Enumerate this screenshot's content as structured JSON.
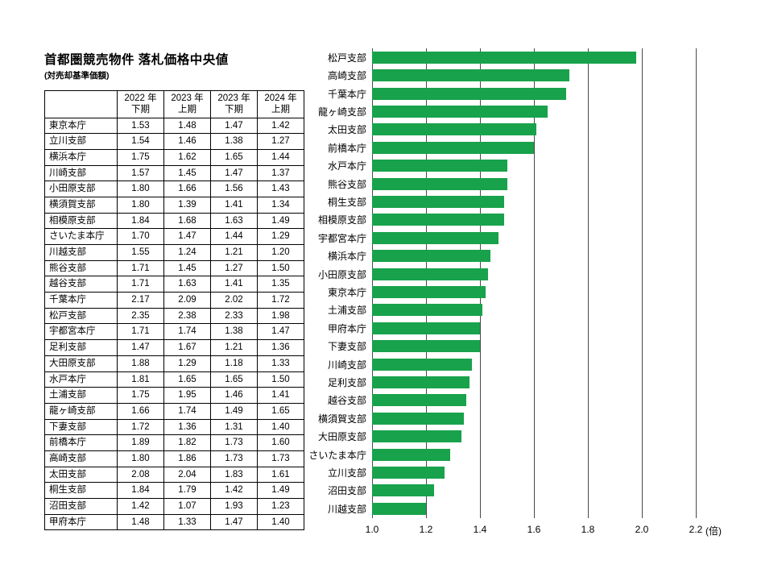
{
  "title": "首都圏競売物件 落札価格中央値",
  "subtitle": "(対売却基準価額)",
  "table": {
    "headers": [
      "2022 年\n下期",
      "2023 年\n上期",
      "2023 年\n下期",
      "2024 年\n上期"
    ],
    "rows": [
      {
        "name": "東京本庁",
        "values": [
          "1.53",
          "1.48",
          "1.47",
          "1.42"
        ]
      },
      {
        "name": "立川支部",
        "values": [
          "1.54",
          "1.46",
          "1.38",
          "1.27"
        ]
      },
      {
        "name": "横浜本庁",
        "values": [
          "1.75",
          "1.62",
          "1.65",
          "1.44"
        ]
      },
      {
        "name": "川崎支部",
        "values": [
          "1.57",
          "1.45",
          "1.47",
          "1.37"
        ]
      },
      {
        "name": "小田原支部",
        "values": [
          "1.80",
          "1.66",
          "1.56",
          "1.43"
        ]
      },
      {
        "name": "横須賀支部",
        "values": [
          "1.80",
          "1.39",
          "1.41",
          "1.34"
        ]
      },
      {
        "name": "相模原支部",
        "values": [
          "1.84",
          "1.68",
          "1.63",
          "1.49"
        ]
      },
      {
        "name": "さいたま本庁",
        "values": [
          "1.70",
          "1.47",
          "1.44",
          "1.29"
        ]
      },
      {
        "name": "川越支部",
        "values": [
          "1.55",
          "1.24",
          "1.21",
          "1.20"
        ]
      },
      {
        "name": "熊谷支部",
        "values": [
          "1.71",
          "1.45",
          "1.27",
          "1.50"
        ]
      },
      {
        "name": "越谷支部",
        "values": [
          "1.71",
          "1.63",
          "1.41",
          "1.35"
        ]
      },
      {
        "name": "千葉本庁",
        "values": [
          "2.17",
          "2.09",
          "2.02",
          "1.72"
        ]
      },
      {
        "name": "松戸支部",
        "values": [
          "2.35",
          "2.38",
          "2.33",
          "1.98"
        ]
      },
      {
        "name": "宇都宮本庁",
        "values": [
          "1.71",
          "1.74",
          "1.38",
          "1.47"
        ]
      },
      {
        "name": "足利支部",
        "values": [
          "1.47",
          "1.67",
          "1.21",
          "1.36"
        ]
      },
      {
        "name": "大田原支部",
        "values": [
          "1.88",
          "1.29",
          "1.18",
          "1.33"
        ]
      },
      {
        "name": "水戸本庁",
        "values": [
          "1.81",
          "1.65",
          "1.65",
          "1.50"
        ]
      },
      {
        "name": "土浦支部",
        "values": [
          "1.75",
          "1.95",
          "1.46",
          "1.41"
        ]
      },
      {
        "name": "龍ヶ崎支部",
        "values": [
          "1.66",
          "1.74",
          "1.49",
          "1.65"
        ]
      },
      {
        "name": "下妻支部",
        "values": [
          "1.72",
          "1.36",
          "1.31",
          "1.40"
        ]
      },
      {
        "name": "前橋本庁",
        "values": [
          "1.89",
          "1.82",
          "1.73",
          "1.60"
        ]
      },
      {
        "name": "高崎支部",
        "values": [
          "1.80",
          "1.86",
          "1.73",
          "1.73"
        ]
      },
      {
        "name": "太田支部",
        "values": [
          "2.08",
          "2.04",
          "1.83",
          "1.61"
        ]
      },
      {
        "name": "桐生支部",
        "values": [
          "1.84",
          "1.79",
          "1.42",
          "1.49"
        ]
      },
      {
        "name": "沼田支部",
        "values": [
          "1.42",
          "1.07",
          "1.93",
          "1.23"
        ]
      },
      {
        "name": "甲府本庁",
        "values": [
          "1.48",
          "1.33",
          "1.47",
          "1.40"
        ]
      }
    ]
  },
  "chart_data": {
    "type": "bar",
    "orientation": "horizontal",
    "title": "首都圏競売物件 落札価格中央値(対売却基準価額)",
    "categories": [
      "松戸支部",
      "高崎支部",
      "千葉本庁",
      "龍ヶ崎支部",
      "太田支部",
      "前橋本庁",
      "水戸本庁",
      "熊谷支部",
      "桐生支部",
      "相模原支部",
      "宇都宮本庁",
      "横浜本庁",
      "小田原支部",
      "東京本庁",
      "土浦支部",
      "甲府本庁",
      "下妻支部",
      "川崎支部",
      "足利支部",
      "越谷支部",
      "横須賀支部",
      "大田原支部",
      "さいたま本庁",
      "立川支部",
      "沼田支部",
      "川越支部"
    ],
    "values": [
      1.98,
      1.73,
      1.72,
      1.65,
      1.61,
      1.6,
      1.5,
      1.5,
      1.49,
      1.49,
      1.47,
      1.44,
      1.43,
      1.42,
      1.41,
      1.4,
      1.4,
      1.37,
      1.36,
      1.35,
      1.34,
      1.33,
      1.29,
      1.27,
      1.23,
      1.2
    ],
    "xlim": [
      1.0,
      2.2
    ],
    "xticks": [
      "1.0",
      "1.2",
      "1.4",
      "1.6",
      "1.8",
      "2.0",
      "2.2"
    ],
    "unit": "(倍)",
    "bar_color": "#18A24B",
    "gridline_color": "#4a4a4a",
    "grid": true,
    "legend": false
  }
}
